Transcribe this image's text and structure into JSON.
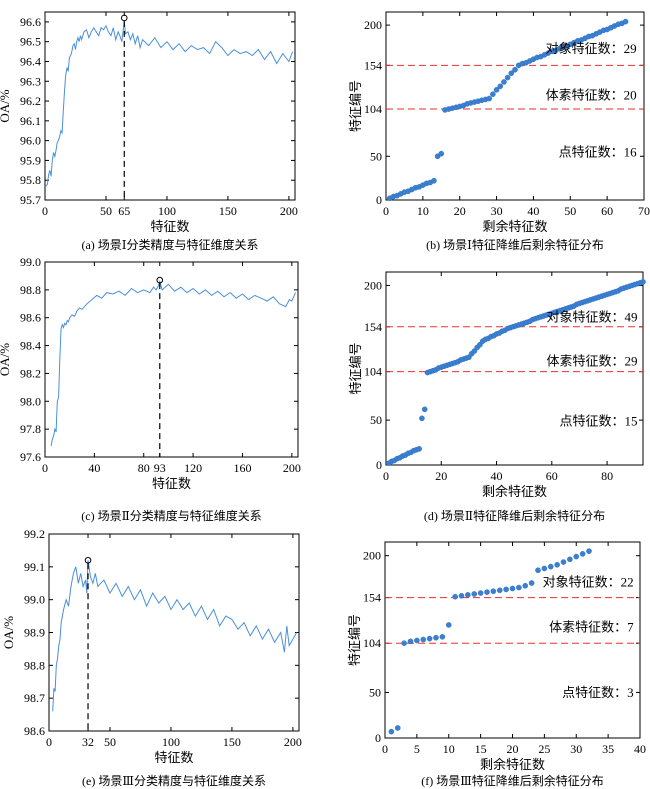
{
  "colors": {
    "series": "#4a90d9",
    "marker": "#3b7fd1",
    "threshold": "#e8322e",
    "axis": "#000000"
  },
  "panels": [
    {
      "id": "a",
      "caption": "(a) 场景Ⅰ分类精度与特征维度关系",
      "chart_data": {
        "type": "line",
        "xlabel": "特征数",
        "ylabel": "OA/%",
        "xlim": [
          0,
          205
        ],
        "ylim": [
          95.7,
          96.65
        ],
        "xticks": [
          0,
          50,
          65,
          100,
          150,
          200
        ],
        "yticks": [
          95.7,
          95.8,
          95.9,
          96.0,
          96.1,
          96.2,
          96.3,
          96.4,
          96.5,
          96.6
        ],
        "ytick_decimals": 1,
        "series": [
          {
            "x": [
              1,
              2,
              3,
              4,
              5,
              6,
              7,
              8,
              9,
              10,
              11,
              12,
              13,
              14,
              15,
              16,
              17,
              18,
              19,
              20,
              21,
              22,
              23,
              24,
              25,
              26,
              27,
              28,
              29,
              30,
              32,
              34,
              36,
              38,
              40,
              42,
              44,
              46,
              48,
              50,
              52,
              54,
              56,
              58,
              60,
              62,
              63,
              64,
              65,
              66,
              68,
              70,
              72,
              74,
              76,
              78,
              80,
              85,
              90,
              95,
              100,
              105,
              110,
              115,
              120,
              125,
              130,
              135,
              140,
              145,
              150,
              155,
              160,
              165,
              170,
              175,
              180,
              185,
              190,
              195,
              200,
              203
            ],
            "y": [
              95.77,
              95.78,
              95.83,
              95.85,
              95.82,
              95.9,
              95.94,
              95.92,
              95.95,
              95.99,
              96.0,
              96.02,
              96.05,
              96.04,
              96.15,
              96.25,
              96.33,
              96.37,
              96.35,
              96.42,
              96.43,
              96.45,
              96.48,
              96.49,
              96.46,
              96.5,
              96.52,
              96.5,
              96.53,
              96.51,
              96.55,
              96.56,
              96.52,
              96.55,
              96.57,
              96.55,
              96.53,
              96.57,
              96.56,
              96.58,
              96.55,
              96.53,
              96.57,
              96.51,
              96.55,
              96.52,
              96.5,
              96.55,
              96.6,
              96.54,
              96.55,
              96.51,
              96.54,
              96.49,
              96.53,
              96.47,
              96.51,
              96.48,
              96.52,
              96.47,
              96.5,
              96.46,
              96.49,
              96.45,
              96.48,
              96.46,
              96.47,
              96.44,
              96.5,
              96.47,
              96.43,
              96.46,
              96.44,
              96.45,
              96.43,
              96.46,
              96.41,
              96.45,
              96.39,
              96.44,
              96.4,
              96.45
            ]
          }
        ],
        "marker": {
          "x": 65,
          "y": 96.62
        }
      }
    },
    {
      "id": "b",
      "caption": "(b) 场景Ⅰ特征降维后剩余特征分布",
      "chart_data": {
        "type": "scatter",
        "xlabel": "剩余特征数",
        "ylabel": "特征编号",
        "xlim": [
          0,
          70
        ],
        "ylim": [
          0,
          215
        ],
        "xticks": [
          0,
          10,
          20,
          30,
          40,
          50,
          60,
          70
        ],
        "yticks": [
          0,
          50,
          104,
          154,
          200
        ],
        "hlines": [
          104,
          154
        ],
        "y_formula": {
          "n": 65,
          "anchors": [
            [
              1,
              2
            ],
            [
              13,
              22
            ],
            [
              14,
              50
            ],
            [
              15,
              53
            ],
            [
              16,
              103
            ],
            [
              28,
              116
            ],
            [
              36,
              154
            ],
            [
              65,
              204
            ]
          ]
        },
        "annotations": [
          {
            "text": "对象特征数：29",
            "x": 68,
            "y": 168
          },
          {
            "text": "体素特征数：20",
            "x": 68,
            "y": 115
          },
          {
            "text": "点特征数：16",
            "x": 68,
            "y": 50
          }
        ]
      }
    },
    {
      "id": "c",
      "caption": "(c) 场景Ⅱ分类精度与特征维度关系",
      "chart_data": {
        "type": "line",
        "xlabel": "特征数",
        "ylabel": "OA/%",
        "xlim": [
          0,
          205
        ],
        "ylim": [
          97.6,
          99.0
        ],
        "xticks": [
          0,
          40,
          80,
          93,
          120,
          160,
          200
        ],
        "yticks": [
          97.6,
          97.8,
          98.0,
          98.2,
          98.4,
          98.6,
          98.8,
          99.0
        ],
        "ytick_decimals": 1,
        "series": [
          {
            "x": [
              5,
              6,
              7,
              8,
              9,
              10,
              11,
              12,
              13,
              14,
              15,
              16,
              17,
              18,
              19,
              20,
              22,
              24,
              26,
              28,
              30,
              34,
              38,
              42,
              46,
              50,
              55,
              60,
              65,
              70,
              75,
              80,
              85,
              88,
              90,
              92,
              93,
              95,
              100,
              105,
              110,
              115,
              120,
              125,
              130,
              135,
              140,
              145,
              150,
              155,
              160,
              165,
              170,
              175,
              180,
              185,
              190,
              195,
              198,
              200,
              203
            ],
            "y": [
              97.68,
              97.73,
              97.75,
              97.8,
              97.78,
              98.0,
              98.03,
              98.3,
              98.52,
              98.55,
              98.53,
              98.56,
              98.55,
              98.58,
              98.57,
              98.6,
              98.62,
              98.61,
              98.65,
              98.67,
              98.66,
              98.7,
              98.73,
              98.76,
              98.74,
              98.78,
              98.77,
              98.79,
              98.76,
              98.81,
              98.78,
              98.8,
              98.78,
              98.82,
              98.8,
              98.83,
              98.86,
              98.8,
              98.84,
              98.79,
              98.82,
              98.78,
              98.81,
              98.77,
              98.8,
              98.76,
              98.79,
              98.75,
              98.78,
              98.74,
              98.77,
              98.73,
              98.76,
              98.74,
              98.72,
              98.75,
              98.7,
              98.68,
              98.73,
              98.72,
              98.78
            ]
          }
        ],
        "marker": {
          "x": 93,
          "y": 98.87
        }
      }
    },
    {
      "id": "d",
      "caption": "(d) 场景Ⅱ特征降维后剩余特征分布",
      "chart_data": {
        "type": "scatter",
        "xlabel": "剩余特征数",
        "ylabel": "特征编号",
        "xlim": [
          0,
          93
        ],
        "ylim": [
          0,
          215
        ],
        "xticks": [
          0,
          20,
          40,
          60,
          80
        ],
        "yticks": [
          0,
          50,
          104,
          154,
          200
        ],
        "hlines": [
          104,
          154
        ],
        "y_formula": {
          "n": 93,
          "anchors": [
            [
              1,
              2
            ],
            [
              11,
              17
            ],
            [
              12,
              18
            ],
            [
              13,
              52
            ],
            [
              14,
              62
            ],
            [
              15,
              103
            ],
            [
              30,
              120
            ],
            [
              35,
              138
            ],
            [
              44,
              152
            ],
            [
              93,
              204
            ]
          ]
        },
        "annotations": [
          {
            "text": "对象特征数：49",
            "x": 91,
            "y": 160
          },
          {
            "text": "体素特征数：29",
            "x": 91,
            "y": 111
          },
          {
            "text": "点特征数：15",
            "x": 91,
            "y": 44
          }
        ]
      }
    },
    {
      "id": "e",
      "caption": "(e) 场景Ⅲ分类精度与特征维度关系",
      "chart_data": {
        "type": "line",
        "xlabel": "特征数",
        "ylabel": "OA/%",
        "xlim": [
          0,
          205
        ],
        "ylim": [
          98.6,
          99.2
        ],
        "xticks": [
          0,
          32,
          50,
          100,
          150,
          200
        ],
        "yticks": [
          98.6,
          98.7,
          98.8,
          98.9,
          99.0,
          99.1,
          99.2
        ],
        "ytick_decimals": 1,
        "series": [
          {
            "x": [
              3,
              4,
              5,
              6,
              7,
              8,
              9,
              10,
              12,
              14,
              16,
              18,
              20,
              22,
              24,
              26,
              28,
              30,
              31,
              32,
              34,
              36,
              38,
              40,
              45,
              50,
              55,
              60,
              65,
              70,
              75,
              80,
              85,
              90,
              95,
              100,
              105,
              110,
              115,
              120,
              125,
              130,
              135,
              140,
              145,
              150,
              155,
              160,
              165,
              170,
              175,
              180,
              185,
              190,
              193,
              195,
              197,
              200,
              203
            ],
            "y": [
              98.66,
              98.73,
              98.72,
              98.8,
              98.82,
              98.86,
              98.88,
              98.93,
              98.97,
              99.0,
              98.98,
              99.04,
              99.08,
              99.1,
              99.05,
              99.08,
              99.04,
              99.06,
              99.02,
              99.12,
              99.07,
              99.05,
              99.08,
              99.04,
              99.06,
              99.02,
              99.05,
              99.01,
              99.04,
              99.0,
              99.03,
              98.98,
              99.02,
              98.99,
              99.01,
              98.97,
              99.0,
              98.97,
              98.99,
              98.95,
              98.98,
              98.94,
              98.97,
              98.92,
              98.95,
              98.94,
              98.91,
              98.93,
              98.89,
              98.92,
              98.88,
              98.91,
              98.87,
              98.9,
              98.84,
              98.92,
              98.86,
              98.88,
              98.9
            ]
          }
        ],
        "marker": {
          "x": 32,
          "y": 99.12
        }
      }
    },
    {
      "id": "f",
      "caption": "(f) 场景Ⅲ特征降维后剩余特征分布",
      "chart_data": {
        "type": "scatter",
        "xlabel": "剩余特征数",
        "ylabel": "特征编号",
        "xlim": [
          0,
          40
        ],
        "ylim": [
          0,
          215
        ],
        "xticks": [
          0,
          5,
          10,
          15,
          20,
          25,
          30,
          35,
          40
        ],
        "yticks": [
          0,
          50,
          104,
          154,
          200
        ],
        "hlines": [
          104,
          154
        ],
        "points": [
          [
            1,
            7
          ],
          [
            2,
            11
          ],
          [
            3,
            104
          ],
          [
            4,
            106
          ],
          [
            5,
            107
          ],
          [
            6,
            108
          ],
          [
            7,
            109
          ],
          [
            8,
            110
          ],
          [
            9,
            111
          ],
          [
            10,
            124
          ],
          [
            11,
            155
          ],
          [
            12,
            156
          ],
          [
            13,
            157
          ],
          [
            14,
            158
          ],
          [
            15,
            159
          ],
          [
            16,
            160
          ],
          [
            17,
            161
          ],
          [
            18,
            162
          ],
          [
            19,
            163
          ],
          [
            20,
            164
          ],
          [
            21,
            165
          ],
          [
            22,
            167
          ],
          [
            23,
            170
          ],
          [
            24,
            184
          ],
          [
            25,
            186
          ],
          [
            26,
            188
          ],
          [
            27,
            190
          ],
          [
            28,
            193
          ],
          [
            29,
            196
          ],
          [
            30,
            199
          ],
          [
            31,
            202
          ],
          [
            32,
            205
          ]
        ],
        "annotations": [
          {
            "text": "对象特征数：22",
            "x": 39,
            "y": 166
          },
          {
            "text": "体素特征数：7",
            "x": 39,
            "y": 117
          },
          {
            "text": "点特征数：3",
            "x": 39,
            "y": 45
          }
        ]
      }
    }
  ]
}
